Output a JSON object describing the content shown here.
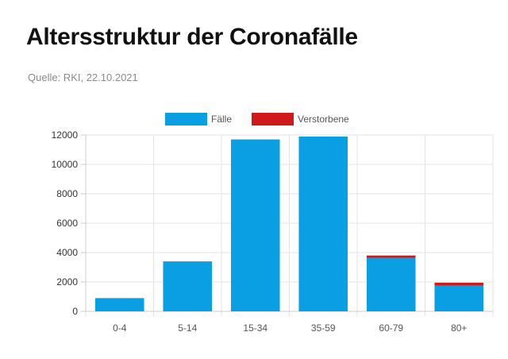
{
  "header": {
    "title": "Altersstruktur der Coronafälle",
    "source": "Quelle: RKI, 22.10.2021"
  },
  "chart_data": {
    "type": "bar",
    "stacked": true,
    "categories": [
      "0-4",
      "5-14",
      "15-34",
      "35-59",
      "60-79",
      "80+"
    ],
    "series": [
      {
        "name": "Fälle",
        "color": "#0a9ee3",
        "values": [
          900,
          3400,
          11700,
          11900,
          3650,
          1750
        ]
      },
      {
        "name": "Verstorbene",
        "color": "#d0191c",
        "values": [
          0,
          0,
          0,
          0,
          150,
          200
        ]
      }
    ],
    "yticks": [
      "0",
      "2000",
      "4000",
      "6000",
      "8000",
      "10000",
      "12000"
    ],
    "ylim": [
      0,
      12000
    ],
    "grid": true,
    "legend_position": "top-center",
    "legend_labels": [
      "Fälle",
      "Verstorbene"
    ]
  }
}
